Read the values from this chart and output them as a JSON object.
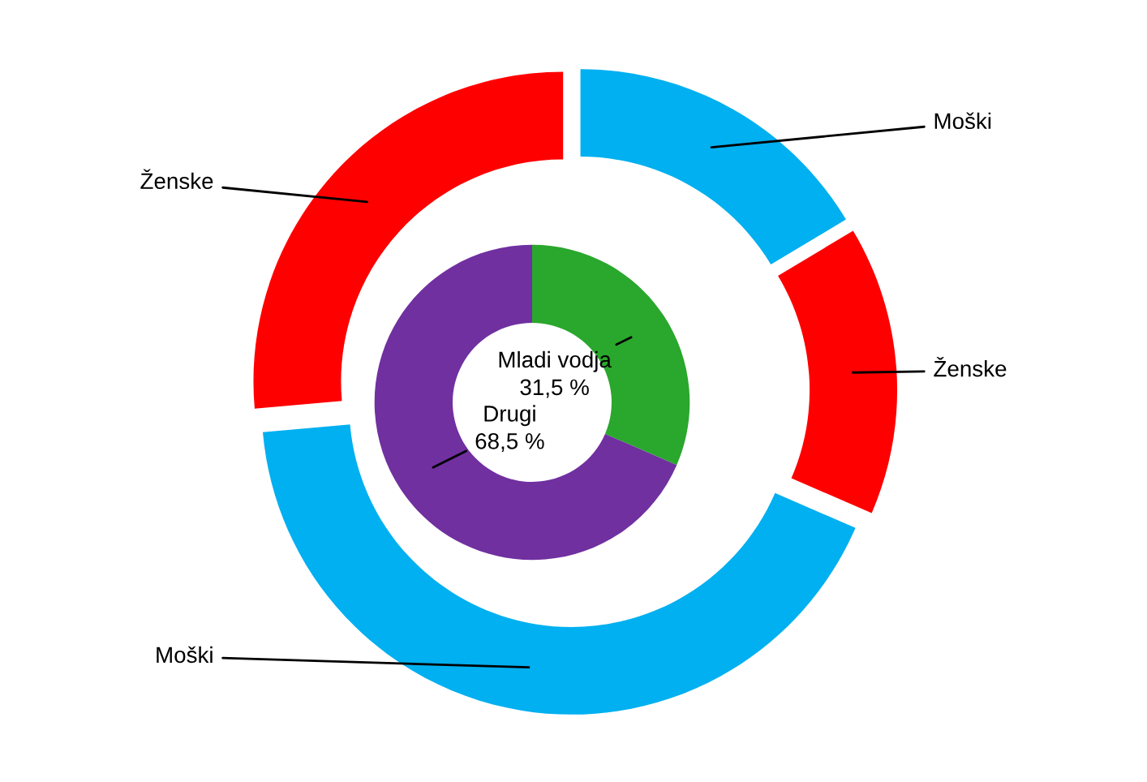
{
  "chart_data": [
    {
      "type": "donut",
      "categories": [
        "Mladi vodja",
        "Drugi"
      ],
      "values": [
        31.5,
        68.5
      ],
      "value_labels": [
        "31,5 %",
        "68,5 %"
      ],
      "colors": [
        "#2aa72d",
        "#7030a0"
      ]
    },
    {
      "type": "donut",
      "categories": [
        "Moški",
        "Ženske",
        "Moški",
        "Ženske"
      ],
      "values": [
        16.4,
        15.1,
        42.1,
        26.4
      ],
      "colors": [
        "#00b0f0",
        "#ff0000",
        "#00b0f0",
        "#ff0000"
      ]
    }
  ]
}
